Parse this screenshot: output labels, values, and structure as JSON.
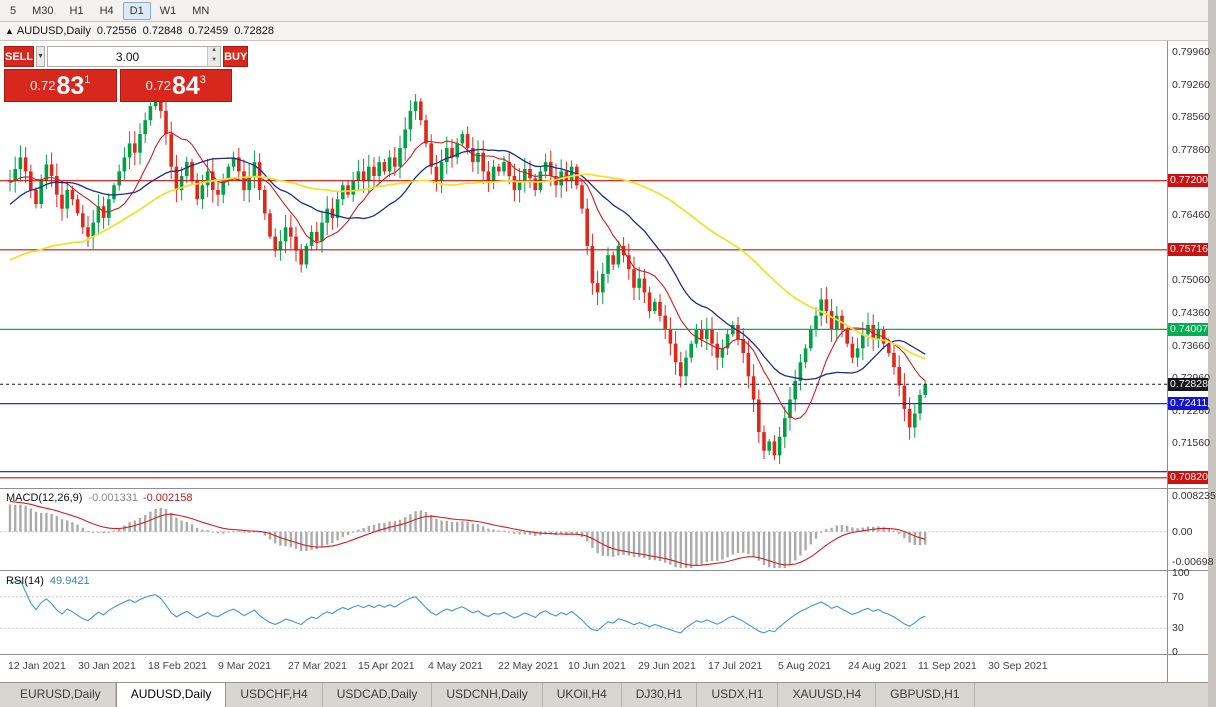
{
  "icons": {
    "chart_menu": "▲",
    "dropdown": "▼",
    "spin_up": "▲",
    "spin_down": "▼"
  },
  "toolbar": {
    "timeframes": [
      {
        "label": "5"
      },
      {
        "label": "M30"
      },
      {
        "label": "H1"
      },
      {
        "label": "H4"
      },
      {
        "label": "D1",
        "active": true
      },
      {
        "label": "W1"
      },
      {
        "label": "MN"
      }
    ]
  },
  "chart_title": {
    "symbol": "AUDUSD,Daily",
    "open": "0.72556",
    "high": "0.72848",
    "low": "0.72459",
    "close": "0.72828"
  },
  "trade_panel": {
    "sell_label": "SELL",
    "buy_label": "BUY",
    "lot_value": "3.00",
    "sell_price": {
      "prefix": "0.72",
      "big": "83",
      "sup": "1"
    },
    "buy_price": {
      "prefix": "0.72",
      "big": "84",
      "sup": "3"
    },
    "accent_red": "#d8281e"
  },
  "indicators": {
    "macd": {
      "name": "MACD(12,26,9)",
      "main": "-0.001331",
      "signal": "-0.002158",
      "axis_labels": [
        "0.008235",
        "0.00",
        "-0.00698"
      ]
    },
    "rsi": {
      "name": "RSI(14)",
      "value": "49.9421",
      "axis_labels": [
        "100",
        "70",
        "30",
        "0"
      ]
    }
  },
  "tabs": [
    {
      "label": "EURUSD,Daily"
    },
    {
      "label": "AUDUSD,Daily",
      "active": true
    },
    {
      "label": "USDCHF,H4"
    },
    {
      "label": "USDCAD,Daily"
    },
    {
      "label": "USDCNH,Daily"
    },
    {
      "label": "UKOil,H4"
    },
    {
      "label": "DJ30,H1"
    },
    {
      "label": "USDX,H1"
    },
    {
      "label": "XAUUSD,H4"
    },
    {
      "label": "GBPUSD,H1"
    }
  ],
  "chart_data": {
    "type": "candlestick",
    "title": "AUDUSD,Daily",
    "x_labels": [
      "12 Jan 2021",
      "30 Jan 2021",
      "18 Feb 2021",
      "9 Mar 2021",
      "27 Mar 2021",
      "15 Apr 2021",
      "4 May 2021",
      "22 May 2021",
      "10 Jun 2021",
      "29 Jun 2021",
      "17 Jul 2021",
      "5 Aug 2021",
      "24 Aug 2021",
      "11 Sep 2021",
      "30 Sep 2021"
    ],
    "price_range": [
      0.706,
      0.802
    ],
    "price_axis_ticks": [
      0.7996,
      0.7926,
      0.7856,
      0.7786,
      0.7646,
      0.7506,
      0.7436,
      0.7366,
      0.7296,
      0.7226,
      0.7156
    ],
    "hlines": [
      {
        "price": 0.772,
        "label": "0.77200",
        "color": "#cc1111"
      },
      {
        "price": 0.75716,
        "label": "0.75716",
        "color": "#cc1111"
      },
      {
        "price": 0.74007,
        "label": "0.74007",
        "color": "#00b050"
      },
      {
        "price": 0.72411,
        "label": "0.72411",
        "color": "#1414cc"
      },
      {
        "price": 0.7095,
        "label": "",
        "color": "#1414cc"
      },
      {
        "price": 0.7082,
        "label": "0.70820",
        "color": "#cc1111"
      }
    ],
    "current_price": {
      "value": 0.72828,
      "label": "0.72828",
      "color": "#15151a"
    },
    "candle_colors": {
      "up": "#00a046",
      "down": "#e0271c"
    },
    "moving_averages": [
      {
        "period": 10,
        "color": "#cc1f1f",
        "width": 1.1
      },
      {
        "period": 21,
        "color": "#1c2f85",
        "width": 1.3
      },
      {
        "period": 55,
        "color": "#ede32e",
        "width": 1.8
      }
    ],
    "macd": {
      "range": [
        -0.0085,
        0.0095
      ],
      "hist_color": "#ababab",
      "signal_color": "#cc2222"
    },
    "rsi": {
      "color": "#3f97d4",
      "levels": [
        70,
        30
      ]
    },
    "prehistory_closes": [
      0.73,
      0.7312,
      0.7325,
      0.7338,
      0.735,
      0.7365,
      0.7378,
      0.739,
      0.7405,
      0.7418,
      0.743,
      0.7445,
      0.7458,
      0.747,
      0.7485,
      0.7498,
      0.751,
      0.7525,
      0.7538,
      0.755,
      0.756,
      0.7575,
      0.7588,
      0.76,
      0.7615,
      0.7628,
      0.764,
      0.7655,
      0.7668,
      0.768,
      0.769,
      0.77,
      0.7712,
      0.772,
      0.771,
      0.7718,
      0.7725,
      0.7715,
      0.7722,
      0.7718
    ],
    "closes": [
      0.772,
      0.7745,
      0.777,
      0.774,
      0.77,
      0.767,
      0.772,
      0.7755,
      0.773,
      0.769,
      0.766,
      0.77,
      0.768,
      0.765,
      0.762,
      0.76,
      0.763,
      0.7665,
      0.764,
      0.768,
      0.771,
      0.774,
      0.777,
      0.78,
      0.778,
      0.782,
      0.785,
      0.788,
      0.7895,
      0.787,
      0.782,
      0.775,
      0.77,
      0.773,
      0.776,
      0.772,
      0.768,
      0.771,
      0.774,
      0.77,
      0.769,
      0.772,
      0.775,
      0.777,
      0.774,
      0.77,
      0.773,
      0.776,
      0.77,
      0.765,
      0.76,
      0.757,
      0.759,
      0.762,
      0.76,
      0.757,
      0.754,
      0.758,
      0.761,
      0.759,
      0.763,
      0.766,
      0.764,
      0.768,
      0.771,
      0.769,
      0.772,
      0.774,
      0.772,
      0.775,
      0.773,
      0.776,
      0.774,
      0.777,
      0.775,
      0.779,
      0.783,
      0.787,
      0.789,
      0.785,
      0.78,
      0.775,
      0.772,
      0.776,
      0.779,
      0.777,
      0.78,
      0.782,
      0.779,
      0.776,
      0.778,
      0.774,
      0.772,
      0.775,
      0.774,
      0.776,
      0.773,
      0.77,
      0.772,
      0.7745,
      0.7725,
      0.77,
      0.774,
      0.776,
      0.773,
      0.771,
      0.774,
      0.772,
      0.775,
      0.771,
      0.766,
      0.758,
      0.75,
      0.748,
      0.752,
      0.756,
      0.754,
      0.758,
      0.756,
      0.753,
      0.749,
      0.751,
      0.748,
      0.744,
      0.746,
      0.743,
      0.74,
      0.737,
      0.733,
      0.73,
      0.734,
      0.737,
      0.74,
      0.738,
      0.74,
      0.737,
      0.734,
      0.736,
      0.739,
      0.741,
      0.738,
      0.735,
      0.73,
      0.725,
      0.718,
      0.714,
      0.716,
      0.713,
      0.717,
      0.721,
      0.725,
      0.729,
      0.733,
      0.736,
      0.74,
      0.743,
      0.7465,
      0.744,
      0.74,
      0.743,
      0.74,
      0.737,
      0.734,
      0.736,
      0.739,
      0.741,
      0.738,
      0.74,
      0.737,
      0.735,
      0.732,
      0.728,
      0.723,
      0.719,
      0.722,
      0.726,
      0.7283
    ]
  }
}
